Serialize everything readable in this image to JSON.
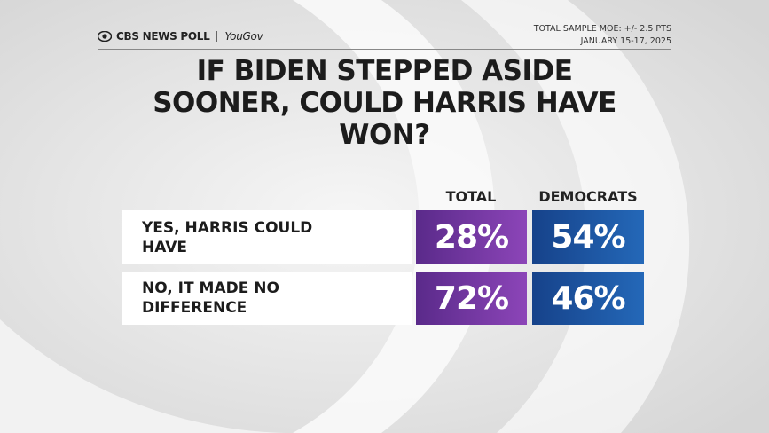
{
  "header": {
    "brand": "CBS NEWS POLL",
    "partner": "YouGov",
    "moe": "TOTAL SAMPLE MOE: +/- 2.5 PTS",
    "date": "JANUARY 15-17, 2025"
  },
  "title": "IF BIDEN STEPPED ASIDE SOONER, COULD HARRIS HAVE WON?",
  "table": {
    "columns": [
      "TOTAL",
      "DEMOCRATS"
    ],
    "rows": [
      [
        "YES, HARRIS COULD HAVE",
        "28%",
        "54%"
      ],
      [
        "NO, IT MADE NO DIFFERENCE",
        "72%",
        "46%"
      ]
    ]
  }
}
